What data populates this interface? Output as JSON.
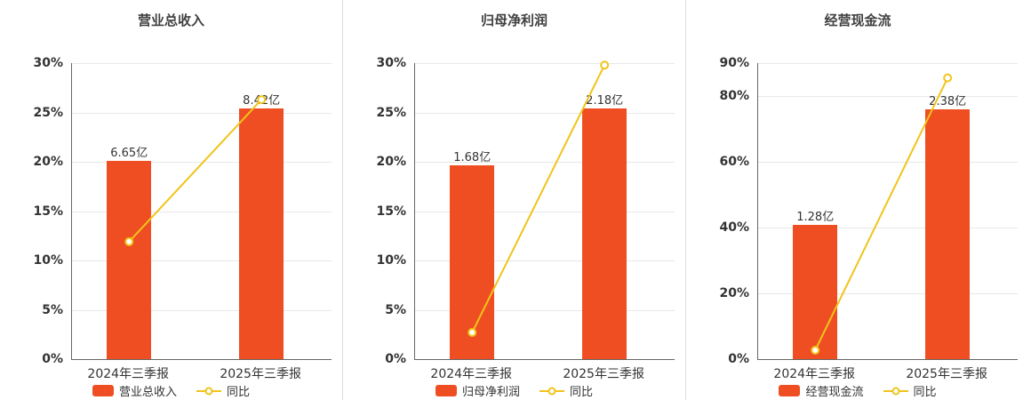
{
  "colors": {
    "bar": "#ef4e22",
    "line": "#f0c41b",
    "axis": "#666666",
    "grid": "#e8e8e8",
    "title": "#404040",
    "tick": "#333333"
  },
  "chart_data": [
    {
      "type": "bar",
      "title": "营业总收入",
      "categories": [
        "2024年三季报",
        "2025年三季报"
      ],
      "bar_series": {
        "name": "营业总收入",
        "labels": [
          "6.65亿",
          "8.42亿"
        ],
        "values_pct": [
          20.1,
          25.4
        ]
      },
      "line_series": {
        "name": "同比",
        "values_pct": [
          11.9,
          26.3
        ]
      },
      "ylim": [
        0,
        30
      ],
      "yticks": [
        0,
        5,
        10,
        15,
        20,
        25,
        30
      ],
      "ytick_suffix": "%",
      "grid": true,
      "legend_position": "bottom"
    },
    {
      "type": "bar",
      "title": "归母净利润",
      "categories": [
        "2024年三季报",
        "2025年三季报"
      ],
      "bar_series": {
        "name": "归母净利润",
        "labels": [
          "1.68亿",
          "2.18亿"
        ],
        "values_pct": [
          19.6,
          25.4
        ]
      },
      "line_series": {
        "name": "同比",
        "values_pct": [
          2.7,
          29.8
        ]
      },
      "ylim": [
        0,
        30
      ],
      "yticks": [
        0,
        5,
        10,
        15,
        20,
        25,
        30
      ],
      "ytick_suffix": "%",
      "grid": true,
      "legend_position": "bottom"
    },
    {
      "type": "bar",
      "title": "经营现金流",
      "categories": [
        "2024年三季报",
        "2025年三季报"
      ],
      "bar_series": {
        "name": "经营现金流",
        "labels": [
          "1.28亿",
          "2.38亿"
        ],
        "values_pct": [
          40.8,
          75.9
        ]
      },
      "line_series": {
        "name": "同比",
        "values_pct": [
          2.7,
          85.5
        ]
      },
      "ylim": [
        0,
        90
      ],
      "yticks": [
        0,
        20,
        40,
        60,
        80,
        90
      ],
      "ytick_suffix": "%",
      "grid": true,
      "legend_position": "bottom"
    }
  ]
}
